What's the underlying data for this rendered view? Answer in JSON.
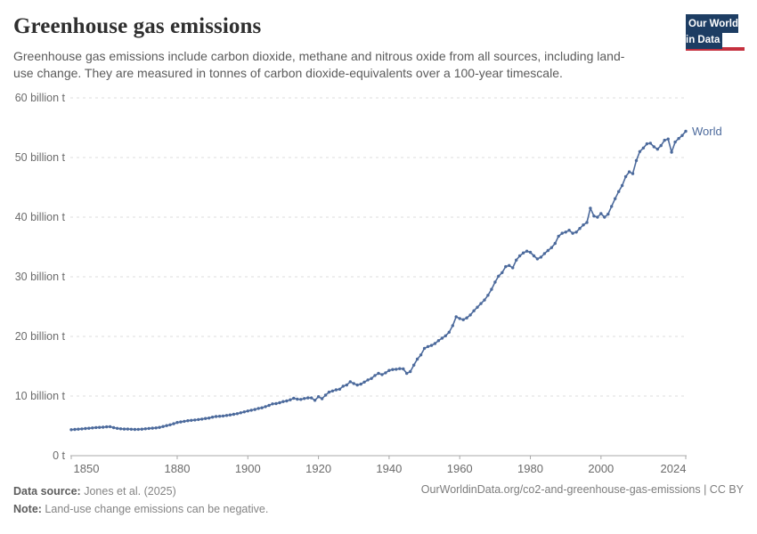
{
  "header": {
    "title": "Greenhouse gas emissions",
    "subtitle": "Greenhouse gas emissions include carbon dioxide, methane and nitrous oxide from all sources, including land-use change. They are measured in tonnes of carbon dioxide-equivalents over a 100-year timescale.",
    "logo": {
      "line1": "Our World",
      "line2": "in Data",
      "bg_color": "#1d3d63",
      "accent_color": "#c5303e"
    }
  },
  "chart_data": {
    "type": "line",
    "title": "Greenhouse gas emissions",
    "series_label": "World",
    "line_color": "#4c6a9c",
    "unit_short": "billion t",
    "xlim": [
      1850,
      2024
    ],
    "ylim": [
      0,
      60
    ],
    "grid": "horizontal-dashed",
    "legend_position": "end-of-line",
    "x_range": {
      "start": 1850,
      "end": 2024,
      "step": 1
    },
    "values": [
      4.36,
      4.4,
      4.45,
      4.5,
      4.55,
      4.6,
      4.66,
      4.71,
      4.75,
      4.78,
      4.83,
      4.87,
      4.7,
      4.58,
      4.51,
      4.47,
      4.46,
      4.43,
      4.41,
      4.42,
      4.45,
      4.51,
      4.56,
      4.61,
      4.65,
      4.74,
      4.89,
      5.05,
      5.18,
      5.36,
      5.56,
      5.66,
      5.76,
      5.86,
      5.93,
      5.99,
      6.06,
      6.13,
      6.24,
      6.31,
      6.46,
      6.56,
      6.61,
      6.66,
      6.74,
      6.84,
      6.94,
      7.04,
      7.19,
      7.34,
      7.5,
      7.63,
      7.74,
      7.93,
      8.03,
      8.23,
      8.43,
      8.68,
      8.73,
      8.88,
      9.08,
      9.18,
      9.38,
      9.63,
      9.48,
      9.43,
      9.58,
      9.68,
      9.68,
      9.28,
      9.9,
      9.55,
      10.15,
      10.65,
      10.85,
      11.05,
      11.15,
      11.65,
      11.85,
      12.4,
      12.1,
      11.85,
      12.0,
      12.35,
      12.7,
      12.95,
      13.45,
      13.8,
      13.6,
      13.9,
      14.3,
      14.45,
      14.5,
      14.6,
      14.55,
      13.8,
      14.1,
      15.2,
      16.2,
      16.9,
      18.0,
      18.3,
      18.5,
      18.8,
      19.3,
      19.7,
      20.1,
      20.7,
      21.8,
      23.3,
      23.0,
      22.8,
      23.1,
      23.6,
      24.3,
      24.9,
      25.5,
      26.1,
      26.9,
      27.9,
      29.1,
      30.1,
      30.7,
      31.7,
      31.9,
      31.5,
      32.8,
      33.5,
      34.0,
      34.3,
      34.1,
      33.5,
      33.0,
      33.3,
      33.9,
      34.4,
      34.9,
      35.6,
      36.8,
      37.3,
      37.5,
      37.8,
      37.3,
      37.5,
      38.1,
      38.7,
      39.1,
      41.5,
      40.2,
      40.0,
      40.6,
      40.0,
      40.5,
      41.8,
      43.1,
      44.3,
      45.3,
      46.8,
      47.6,
      47.3,
      49.5,
      51.0,
      51.6,
      52.3,
      52.4,
      51.8,
      51.4,
      52.0,
      52.9,
      53.1,
      50.9,
      52.6,
      53.2,
      53.7,
      54.4
    ],
    "y_ticks": [
      {
        "value": 0,
        "label": "0 t"
      },
      {
        "value": 10,
        "label": "10 billion t"
      },
      {
        "value": 20,
        "label": "20 billion t"
      },
      {
        "value": 30,
        "label": "30 billion t"
      },
      {
        "value": 40,
        "label": "40 billion t"
      },
      {
        "value": 50,
        "label": "50 billion t"
      },
      {
        "value": 60,
        "label": "60 billion t"
      }
    ],
    "x_ticks": [
      {
        "value": 1850,
        "label": "1850"
      },
      {
        "value": 1880,
        "label": "1880"
      },
      {
        "value": 1900,
        "label": "1900"
      },
      {
        "value": 1920,
        "label": "1920"
      },
      {
        "value": 1940,
        "label": "1940"
      },
      {
        "value": 1960,
        "label": "1960"
      },
      {
        "value": 1980,
        "label": "1980"
      },
      {
        "value": 2000,
        "label": "2000"
      },
      {
        "value": 2024,
        "label": "2024"
      }
    ],
    "colors": {
      "grid": "#dcdcdc",
      "axis": "#a8a8a8",
      "tick_text": "#6b6b6b"
    }
  },
  "footer": {
    "data_source_label": "Data source:",
    "data_source_value": " Jones et al. (2025)",
    "note_label": "Note:",
    "note_value": " Land-use change emissions can be negative.",
    "url_text": "OurWorldinData.org/co2-and-greenhouse-gas-emissions | CC BY"
  }
}
